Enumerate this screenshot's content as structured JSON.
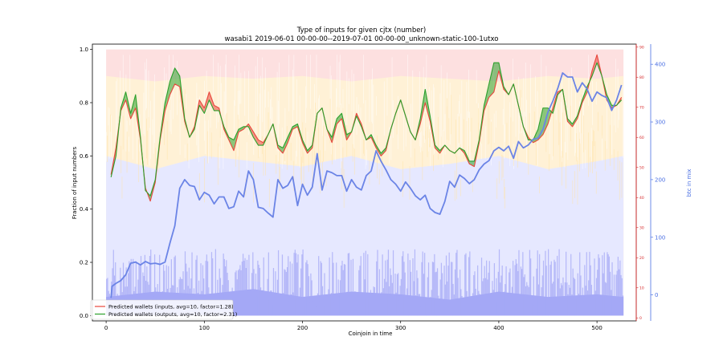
{
  "chart_data": {
    "type": "line",
    "title": "Type of inputs for given cjtx (number)",
    "subtitle": "wasabi1 2019-06-01 00-00-00--2019-07-01 00-00-00_unknown-static-100-1utxo",
    "xlabel": "Coinjoin in time",
    "ylabel": "Fraction of input numbers",
    "y2label": "btc in mix",
    "xlim": [
      -14,
      540
    ],
    "ylim": [
      -0.02,
      1.02
    ],
    "y2lim": [
      -45,
      435
    ],
    "y3lim": [
      -1,
      91
    ],
    "xticks": [
      0,
      100,
      200,
      300,
      400,
      500
    ],
    "yticks": [
      "0.0",
      "0.2",
      "0.4",
      "0.6",
      "0.8",
      "1.0"
    ],
    "y2ticks": [
      0,
      100,
      200,
      300,
      400
    ],
    "y3ticks": [
      0,
      10,
      20,
      30,
      40,
      50,
      60,
      70,
      80,
      90
    ],
    "grid": false,
    "legend_position": "lower-left",
    "legend": [
      {
        "label": "Predicted wallets (inputs, avg=10, factor=1.28)",
        "color": "#e8473c"
      },
      {
        "label": "Predicted wallets (outputs, avg=10, factor=2.31)",
        "color": "#2ca02c"
      }
    ],
    "n_coinjoins": 527,
    "stack_colors": {
      "bottom": "#a4a8f6",
      "middle": "#e6e8ff",
      "orange": "#fff1d6",
      "top": "#fde0e0"
    },
    "band_fractions": {
      "x": [
        0,
        50,
        100,
        150,
        200,
        250,
        300,
        350,
        400,
        450,
        500,
        527
      ],
      "bottom_small": [
        0.07,
        0.09,
        0.08,
        0.1,
        0.07,
        0.09,
        0.08,
        0.06,
        0.09,
        0.07,
        0.08,
        0.07
      ],
      "blue_top": [
        0.6,
        0.55,
        0.6,
        0.58,
        0.56,
        0.6,
        0.55,
        0.57,
        0.6,
        0.55,
        0.58,
        0.6
      ],
      "orange_top": [
        0.9,
        0.88,
        0.9,
        0.89,
        0.9,
        0.88,
        0.9,
        0.89,
        0.88,
        0.9,
        0.89,
        0.9
      ]
    },
    "series": [
      {
        "name": "Predicted wallets (inputs, avg=10, factor=1.28)",
        "axis": "left",
        "color": "#e8473c",
        "x": [
          5,
          10,
          15,
          20,
          25,
          30,
          35,
          40,
          45,
          50,
          55,
          60,
          65,
          70,
          75,
          80,
          85,
          90,
          95,
          100,
          105,
          110,
          115,
          120,
          125,
          130,
          135,
          140,
          145,
          150,
          155,
          160,
          165,
          170,
          175,
          180,
          185,
          190,
          195,
          200,
          205,
          210,
          215,
          220,
          225,
          230,
          235,
          240,
          245,
          250,
          255,
          260,
          265,
          270,
          275,
          280,
          285,
          290,
          295,
          300,
          305,
          310,
          315,
          320,
          325,
          330,
          335,
          340,
          345,
          350,
          355,
          360,
          365,
          370,
          375,
          380,
          385,
          390,
          395,
          400,
          405,
          410,
          415,
          420,
          425,
          430,
          435,
          440,
          445,
          450,
          455,
          460,
          465,
          470,
          475,
          480,
          485,
          490,
          495,
          500,
          505,
          510,
          515,
          520,
          525
        ],
        "values": [
          0.53,
          0.63,
          0.77,
          0.81,
          0.74,
          0.78,
          0.66,
          0.48,
          0.43,
          0.5,
          0.66,
          0.77,
          0.83,
          0.87,
          0.86,
          0.73,
          0.67,
          0.71,
          0.81,
          0.78,
          0.84,
          0.79,
          0.78,
          0.7,
          0.66,
          0.62,
          0.69,
          0.7,
          0.72,
          0.69,
          0.66,
          0.65,
          0.68,
          0.72,
          0.63,
          0.61,
          0.65,
          0.7,
          0.71,
          0.65,
          0.61,
          0.63,
          0.76,
          0.78,
          0.7,
          0.65,
          0.72,
          0.74,
          0.66,
          0.69,
          0.76,
          0.72,
          0.66,
          0.67,
          0.63,
          0.6,
          0.62,
          0.7,
          0.76,
          0.81,
          0.75,
          0.69,
          0.66,
          0.72,
          0.8,
          0.73,
          0.63,
          0.61,
          0.64,
          0.62,
          0.61,
          0.63,
          0.61,
          0.57,
          0.56,
          0.65,
          0.77,
          0.82,
          0.84,
          0.92,
          0.85,
          0.83,
          0.87,
          0.79,
          0.71,
          0.67,
          0.65,
          0.66,
          0.68,
          0.72,
          0.78,
          0.84,
          0.85,
          0.73,
          0.71,
          0.74,
          0.8,
          0.84,
          0.92,
          0.98,
          0.9,
          0.81,
          0.78,
          0.79,
          0.82
        ]
      },
      {
        "name": "Predicted wallets (outputs, avg=10, factor=2.31)",
        "axis": "left",
        "color": "#2ca02c",
        "x": [
          5,
          10,
          15,
          20,
          25,
          30,
          35,
          40,
          45,
          50,
          55,
          60,
          65,
          70,
          75,
          80,
          85,
          90,
          95,
          100,
          105,
          110,
          115,
          120,
          125,
          130,
          135,
          140,
          145,
          150,
          155,
          160,
          165,
          170,
          175,
          180,
          185,
          190,
          195,
          200,
          205,
          210,
          215,
          220,
          225,
          230,
          235,
          240,
          245,
          250,
          255,
          260,
          265,
          270,
          275,
          280,
          285,
          290,
          295,
          300,
          305,
          310,
          315,
          320,
          325,
          330,
          335,
          340,
          345,
          350,
          355,
          360,
          365,
          370,
          375,
          380,
          385,
          390,
          395,
          400,
          405,
          410,
          415,
          420,
          425,
          430,
          435,
          440,
          445,
          450,
          455,
          460,
          465,
          470,
          475,
          480,
          485,
          490,
          495,
          500,
          505,
          510,
          515,
          520,
          525
        ],
        "values": [
          0.52,
          0.6,
          0.78,
          0.84,
          0.76,
          0.83,
          0.67,
          0.47,
          0.45,
          0.51,
          0.67,
          0.8,
          0.88,
          0.93,
          0.9,
          0.74,
          0.67,
          0.7,
          0.79,
          0.76,
          0.81,
          0.77,
          0.77,
          0.71,
          0.67,
          0.66,
          0.7,
          0.71,
          0.71,
          0.67,
          0.64,
          0.64,
          0.68,
          0.72,
          0.64,
          0.63,
          0.67,
          0.71,
          0.72,
          0.66,
          0.62,
          0.64,
          0.76,
          0.78,
          0.7,
          0.67,
          0.74,
          0.76,
          0.68,
          0.69,
          0.75,
          0.71,
          0.66,
          0.68,
          0.64,
          0.61,
          0.63,
          0.7,
          0.76,
          0.81,
          0.75,
          0.69,
          0.66,
          0.74,
          0.85,
          0.75,
          0.64,
          0.62,
          0.64,
          0.62,
          0.61,
          0.63,
          0.62,
          0.58,
          0.58,
          0.66,
          0.79,
          0.87,
          0.95,
          0.95,
          0.86,
          0.83,
          0.87,
          0.79,
          0.71,
          0.66,
          0.66,
          0.7,
          0.78,
          0.78,
          0.76,
          0.83,
          0.85,
          0.74,
          0.72,
          0.75,
          0.81,
          0.86,
          0.9,
          0.95,
          0.9,
          0.83,
          0.79,
          0.79,
          0.81
        ]
      },
      {
        "name": "btc in mix",
        "axis": "right",
        "color": "#6b84e6",
        "x": [
          5,
          6,
          10,
          15,
          20,
          25,
          30,
          35,
          40,
          45,
          50,
          55,
          60,
          65,
          70,
          75,
          80,
          85,
          90,
          95,
          100,
          105,
          110,
          115,
          120,
          125,
          130,
          135,
          140,
          145,
          150,
          155,
          160,
          165,
          170,
          175,
          180,
          185,
          190,
          195,
          200,
          205,
          210,
          215,
          220,
          225,
          230,
          235,
          240,
          245,
          250,
          255,
          260,
          265,
          270,
          275,
          280,
          285,
          290,
          295,
          300,
          305,
          310,
          315,
          320,
          325,
          330,
          335,
          340,
          345,
          350,
          355,
          360,
          365,
          370,
          375,
          380,
          385,
          390,
          395,
          400,
          405,
          410,
          415,
          420,
          425,
          430,
          435,
          440,
          445,
          450,
          455,
          460,
          465,
          470,
          475,
          480,
          485,
          490,
          495,
          500,
          505,
          510,
          515,
          520,
          525
        ],
        "values": [
          -5,
          15,
          20,
          25,
          35,
          55,
          57,
          52,
          58,
          54,
          55,
          53,
          57,
          90,
          120,
          185,
          200,
          190,
          188,
          165,
          178,
          173,
          158,
          170,
          170,
          150,
          153,
          180,
          170,
          215,
          200,
          152,
          150,
          142,
          135,
          200,
          185,
          190,
          205,
          155,
          192,
          173,
          187,
          245,
          182,
          215,
          212,
          207,
          207,
          180,
          200,
          187,
          182,
          207,
          215,
          250,
          232,
          217,
          200,
          192,
          180,
          196,
          185,
          172,
          165,
          173,
          150,
          143,
          140,
          162,
          197,
          187,
          208,
          202,
          193,
          200,
          217,
          227,
          233,
          250,
          256,
          250,
          258,
          237,
          266,
          255,
          260,
          270,
          272,
          287,
          317,
          336,
          358,
          385,
          378,
          378,
          352,
          368,
          357,
          336,
          352,
          346,
          342,
          320,
          338,
          364
        ]
      }
    ]
  }
}
